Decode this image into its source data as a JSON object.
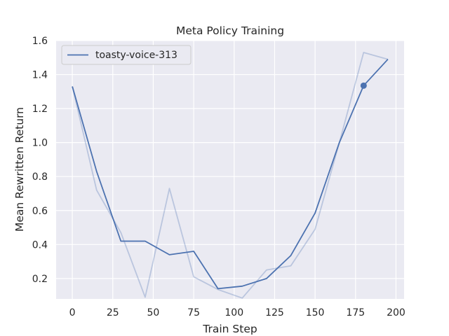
{
  "chart_data": {
    "type": "line",
    "title": "Meta Policy Training",
    "xlabel": "Train Step",
    "ylabel": "Mean Rewritten Return",
    "xlim": [
      -10,
      205
    ],
    "ylim": [
      0.08,
      1.6
    ],
    "xticks": [
      0,
      25,
      50,
      75,
      100,
      125,
      150,
      175,
      200
    ],
    "yticks": [
      0.2,
      0.4,
      0.6,
      0.8,
      1.0,
      1.2,
      1.4,
      1.6
    ],
    "grid": true,
    "legend_position": "top-left",
    "colors": {
      "background": "#eaeaf2",
      "grid": "#ffffff",
      "series": "#4c72b0"
    },
    "series": [
      {
        "name": "toasty-voice-313",
        "role": "smoothed",
        "x": [
          0,
          15,
          30,
          45,
          60,
          75,
          90,
          105,
          120,
          135,
          150,
          165,
          180,
          195
        ],
        "y": [
          1.33,
          0.83,
          0.42,
          0.42,
          0.34,
          0.36,
          0.14,
          0.155,
          0.2,
          0.335,
          0.585,
          1.0,
          1.335,
          1.49
        ]
      },
      {
        "name": "",
        "role": "raw",
        "x": [
          0,
          15,
          30,
          45,
          60,
          75,
          90,
          105,
          120,
          135,
          150,
          165,
          180,
          195
        ],
        "y": [
          1.33,
          0.72,
          0.47,
          0.09,
          0.73,
          0.21,
          0.135,
          0.085,
          0.25,
          0.275,
          0.49,
          1.0,
          1.53,
          1.49
        ]
      }
    ],
    "marker": {
      "x": 180,
      "y": 1.335
    }
  }
}
